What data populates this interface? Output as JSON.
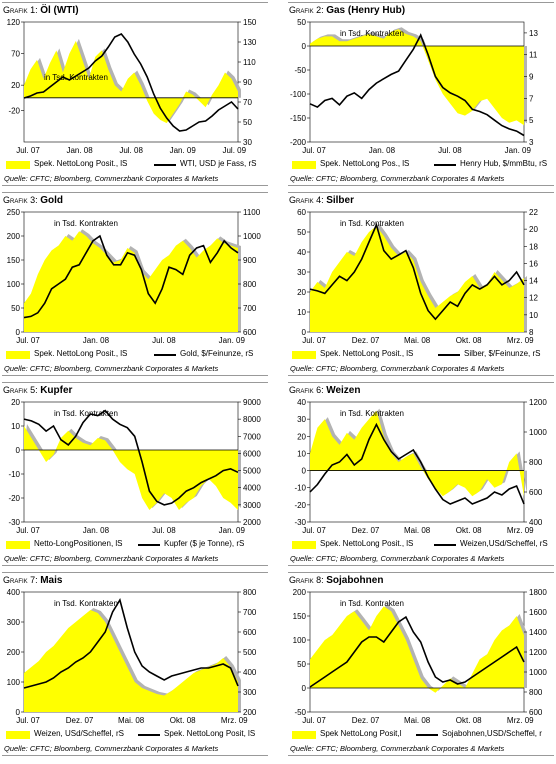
{
  "colors": {
    "fill": "#ffff00",
    "grey": "#b3b3b3",
    "line": "#000000"
  },
  "charts": [
    {
      "prefix": "Grafik 1:",
      "name": "Öl (WTI)",
      "annotation": "in Tsd. Kontrakten",
      "legend_fill": "Spek. NettoLong Posit., lS",
      "legend_line": "WTI, USD je Fass, rS",
      "source": "Quelle: CFTC; Bloomberg, Commerzbank Corporates & Markets"
    },
    {
      "prefix": "Grafik 2:",
      "name": "Gas (Henry Hub)",
      "annotation": "in Tsd. Kontrakten",
      "legend_fill": "Spek. NettoLong Pos., lS",
      "legend_line": "Henry Hub, $/mmBtu, rS",
      "source": "Quelle: CFTC; Bloomberg, Commerzbank Corporates & Markets"
    },
    {
      "prefix": "Grafik 3:",
      "name": "Gold",
      "annotation": "in Tsd. Kontrakten",
      "legend_fill": "Spek. NettoLong Posit., lS",
      "legend_line": "Gold, $/Feinunze, rS",
      "source": "Quelle: CFTC; Bloomberg, Commerzbank Corporates & Markets"
    },
    {
      "prefix": "Grafik 4:",
      "name": "Silber",
      "annotation": "in Tsd. Kontrakten",
      "legend_fill": "Spek. NettoLong Posit., lS",
      "legend_line": "Silber, $/Feinunze, rS",
      "source": "Quelle: CFTC; Bloomberg, Commerzbank Corporates & Markets"
    },
    {
      "prefix": "Grafik 5:",
      "name": "Kupfer",
      "annotation": "in Tsd. Kontrakten",
      "legend_fill": "Netto-LongPositionen, lS",
      "legend_line": "Kupfer ($ je Tonne), rS",
      "source": "Quelle: CFTC; Bloomberg, Commerzbank Corporates & Markets"
    },
    {
      "prefix": "Grafik 6:",
      "name": "Weizen",
      "annotation": "in Tsd. Kontrakten",
      "legend_fill": "Spek. NettoLong Posit., lS",
      "legend_line": "Weizen,USd/Scheffel, rS",
      "source": "Quelle: CFTC; Bloomberg, Commerzbank Corporates & Markets"
    },
    {
      "prefix": "Grafik 7:",
      "name": "Mais",
      "annotation": "in Tsd. Kontrakten",
      "legend_fill": "Weizen, USd/Scheffel, rS",
      "legend_line": "Spek. NettoLong Posit, lS",
      "source": "Quelle: CFTC; Bloomberg, Commerzbank Corporates & Markets"
    },
    {
      "prefix": "Grafik 8:",
      "name": "Sojabohnen",
      "annotation": "in Tsd. Kontrakten",
      "legend_fill": "Spek NettoLong Posit,l",
      "legend_line": "Sojabohnen,USD/Scheffel, r",
      "source": "Quelle: CFTC; Bloomberg, Commerzbank Corporates & Markets"
    }
  ],
  "chart_data": [
    {
      "type": "area",
      "title": "Öl (WTI)",
      "x_labels": [
        "Jul. 07",
        "Jan. 08",
        "Jul. 08",
        "Jan. 09",
        "Jul. 09"
      ],
      "left_axis": {
        "ticks": [
          -20,
          20,
          70,
          120
        ],
        "range": [
          -70,
          120
        ]
      },
      "right_axis": {
        "ticks": [
          30,
          50,
          70,
          90,
          110,
          130,
          150
        ],
        "range": [
          30,
          150
        ]
      },
      "series": [
        {
          "name": "Spek. NettoLong Posit., lS",
          "axis": "left",
          "values": [
            20,
            45,
            60,
            30,
            55,
            75,
            40,
            70,
            90,
            60,
            30,
            65,
            75,
            45,
            20,
            10,
            30,
            40,
            20,
            -5,
            -25,
            -35,
            -40,
            -25,
            -10,
            10,
            5,
            -5,
            -15,
            5,
            20,
            40,
            30,
            10
          ]
        },
        {
          "name": "WTI, USD je Fass, rS",
          "axis": "right",
          "values": [
            74,
            76,
            79,
            80,
            85,
            90,
            95,
            92,
            96,
            100,
            104,
            111,
            116,
            125,
            135,
            138,
            130,
            118,
            108,
            95,
            78,
            64,
            54,
            46,
            41,
            42,
            46,
            50,
            51,
            56,
            62,
            66,
            70,
            63
          ]
        }
      ]
    },
    {
      "type": "area",
      "title": "Gas (Henry Hub)",
      "x_labels": [
        "Jul. 07",
        "Jan. 08",
        "Jul. 08",
        "Jan. 09"
      ],
      "left_axis": {
        "ticks": [
          -200,
          -150,
          -100,
          -50,
          0,
          50
        ],
        "range": [
          -200,
          50
        ]
      },
      "right_axis": {
        "ticks": [
          3,
          5,
          7,
          9,
          11,
          13
        ],
        "range": [
          3,
          14
        ]
      },
      "series": [
        {
          "name": "Spek. NettoLong Pos., lS",
          "axis": "left",
          "values": [
            5,
            15,
            20,
            20,
            10,
            10,
            15,
            20,
            25,
            20,
            15,
            30,
            35,
            25,
            20,
            10,
            -30,
            -70,
            -100,
            -120,
            -140,
            -145,
            -135,
            -115,
            -110,
            -130,
            -150,
            -160,
            -155,
            -165
          ]
        },
        {
          "name": "Henry Hub, $/mmBtu, rS",
          "axis": "right",
          "values": [
            6.5,
            6.2,
            6.8,
            7.0,
            6.4,
            7.2,
            7.5,
            7.0,
            7.8,
            8.4,
            8.8,
            9.2,
            9.5,
            10.5,
            11.5,
            12.8,
            11.0,
            9.0,
            8.0,
            7.5,
            7.2,
            6.8,
            6.0,
            5.8,
            5.5,
            5.0,
            4.5,
            4.2,
            4.0,
            3.6
          ]
        }
      ]
    },
    {
      "type": "area",
      "title": "Gold",
      "x_labels": [
        "Jul. 07",
        "Jan. 08",
        "Jul. 08",
        "Jan. 09"
      ],
      "left_axis": {
        "ticks": [
          0,
          50,
          100,
          150,
          200,
          250
        ],
        "range": [
          0,
          250
        ]
      },
      "right_axis": {
        "ticks": [
          600,
          700,
          800,
          900,
          1000,
          1100
        ],
        "range": [
          600,
          1100
        ]
      },
      "series": [
        {
          "name": "Spek. NettoLong Posit., lS",
          "axis": "left",
          "values": [
            60,
            80,
            120,
            150,
            170,
            180,
            200,
            190,
            210,
            200,
            185,
            175,
            160,
            145,
            150,
            175,
            165,
            125,
            110,
            130,
            150,
            160,
            180,
            190,
            175,
            155,
            170,
            180,
            195,
            185,
            180,
            175
          ]
        },
        {
          "name": "Gold, $/Feinunze, rS",
          "axis": "right",
          "values": [
            660,
            665,
            680,
            720,
            780,
            800,
            820,
            870,
            880,
            930,
            980,
            1000,
            920,
            880,
            880,
            930,
            920,
            860,
            760,
            720,
            780,
            870,
            860,
            840,
            920,
            950,
            960,
            890,
            930,
            980,
            950,
            930
          ]
        }
      ]
    },
    {
      "type": "area",
      "title": "Silber",
      "x_labels": [
        "Jul. 07",
        "Dez. 07",
        "Mai. 08",
        "Okt. 08",
        "Mrz. 09"
      ],
      "left_axis": {
        "ticks": [
          0,
          10,
          20,
          30,
          40,
          50,
          60
        ],
        "range": [
          0,
          60
        ]
      },
      "right_axis": {
        "ticks": [
          8,
          10,
          12,
          14,
          16,
          18,
          20,
          22
        ],
        "range": [
          8,
          22
        ]
      },
      "series": [
        {
          "name": "Spek. NettoLong Posit., lS",
          "axis": "left",
          "values": [
            20,
            25,
            22,
            30,
            35,
            40,
            38,
            45,
            50,
            53,
            48,
            42,
            38,
            40,
            36,
            25,
            18,
            12,
            15,
            18,
            20,
            25,
            28,
            22,
            24,
            30,
            26,
            22,
            24,
            27
          ]
        },
        {
          "name": "Silber, $/Feinunze, rS",
          "axis": "right",
          "values": [
            13,
            12.8,
            12.5,
            13.5,
            14.5,
            14.0,
            15.0,
            16.5,
            18.5,
            20.5,
            17.5,
            16.5,
            17.0,
            17.5,
            15.5,
            12.5,
            10.5,
            9.5,
            10.5,
            11.5,
            11.0,
            12.5,
            13.5,
            13.0,
            13.5,
            14.5,
            13.5,
            14.0,
            15.0,
            13.5
          ]
        }
      ]
    },
    {
      "type": "area",
      "title": "Kupfer",
      "x_labels": [
        "Jul. 07",
        "Jan. 08",
        "Jul. 08",
        "Jan. 09"
      ],
      "left_axis": {
        "ticks": [
          -30,
          -20,
          -10,
          0,
          10,
          20
        ],
        "range": [
          -30,
          20
        ]
      },
      "right_axis": {
        "ticks": [
          2000,
          3000,
          4000,
          5000,
          6000,
          7000,
          8000,
          9000
        ],
        "range": [
          2000,
          9000
        ]
      },
      "series": [
        {
          "name": "Netto-LongPositionen, lS",
          "axis": "left",
          "values": [
            10,
            5,
            0,
            -5,
            -2,
            5,
            8,
            5,
            3,
            2,
            5,
            4,
            0,
            -5,
            -8,
            -10,
            -20,
            -25,
            -22,
            -18,
            -20,
            -25,
            -22,
            -20,
            -15,
            -12,
            -15,
            -20,
            -22,
            -25
          ]
        },
        {
          "name": "Kupfer ($ je Tonne), rS",
          "axis": "right",
          "values": [
            8000,
            7900,
            7700,
            7300,
            7600,
            6800,
            6500,
            7000,
            7800,
            8300,
            8200,
            8500,
            8000,
            7700,
            7500,
            7000,
            5500,
            3800,
            3200,
            3000,
            3100,
            3400,
            3800,
            4000,
            4300,
            4500,
            4700,
            5000,
            5100,
            4900
          ]
        }
      ]
    },
    {
      "type": "area",
      "title": "Weizen",
      "x_labels": [
        "Jul. 07",
        "Dez. 07",
        "Mai. 08",
        "Okt. 08",
        "Mrz. 09"
      ],
      "left_axis": {
        "ticks": [
          -30,
          -20,
          -10,
          0,
          10,
          20,
          30,
          40
        ],
        "range": [
          -30,
          40
        ]
      },
      "right_axis": {
        "ticks": [
          400,
          600,
          800,
          1000,
          1200
        ],
        "range": [
          400,
          1200
        ]
      },
      "series": [
        {
          "name": "Spek. NettoLong Posit., lS",
          "axis": "left",
          "values": [
            10,
            25,
            30,
            20,
            15,
            22,
            18,
            25,
            30,
            35,
            20,
            10,
            5,
            8,
            10,
            2,
            -5,
            -10,
            -15,
            -12,
            -8,
            -10,
            -15,
            -12,
            -5,
            -10,
            -8,
            5,
            10,
            -15
          ]
        },
        {
          "name": "Weizen,USd/Scheffel, rS",
          "axis": "right",
          "values": [
            600,
            650,
            720,
            780,
            800,
            850,
            780,
            820,
            950,
            1050,
            950,
            870,
            820,
            850,
            880,
            800,
            700,
            620,
            550,
            520,
            540,
            560,
            520,
            540,
            560,
            600,
            580,
            620,
            640,
            520
          ]
        }
      ]
    },
    {
      "type": "area",
      "title": "Mais",
      "x_labels": [
        "Jul. 07",
        "Dez. 07",
        "Mai. 08",
        "Okt. 08",
        "Mrz. 09"
      ],
      "left_axis": {
        "ticks": [
          0,
          100,
          200,
          300,
          400
        ],
        "range": [
          0,
          400
        ]
      },
      "right_axis": {
        "ticks": [
          200,
          300,
          400,
          500,
          600,
          700,
          800
        ],
        "range": [
          200,
          800
        ]
      },
      "series": [
        {
          "name": "Weizen, USd/Scheffel, rS",
          "axis": "left",
          "values": [
            130,
            150,
            170,
            200,
            220,
            250,
            280,
            300,
            320,
            340,
            330,
            300,
            250,
            200,
            150,
            100,
            80,
            70,
            60,
            55,
            70,
            90,
            110,
            130,
            140,
            150,
            160,
            180,
            150,
            100
          ]
        },
        {
          "name": "Spek. NettoLong Posit, lS",
          "axis": "right",
          "values": [
            320,
            330,
            340,
            350,
            370,
            400,
            420,
            450,
            470,
            500,
            550,
            600,
            700,
            760,
            620,
            500,
            430,
            400,
            380,
            360,
            380,
            390,
            400,
            410,
            420,
            420,
            430,
            440,
            420,
            330
          ]
        }
      ]
    },
    {
      "type": "area",
      "title": "Sojabohnen",
      "x_labels": [
        "Jul. 07",
        "Dez. 07",
        "Mai. 08",
        "Okt. 08",
        "Mrz. 09"
      ],
      "left_axis": {
        "ticks": [
          -50,
          0,
          50,
          100,
          150,
          200
        ],
        "range": [
          -50,
          200
        ]
      },
      "right_axis": {
        "ticks": [
          600,
          800,
          1000,
          1200,
          1400,
          1600,
          1800
        ],
        "range": [
          600,
          1800
        ]
      },
      "series": [
        {
          "name": "Spek NettoLong Posit,l",
          "axis": "left",
          "values": [
            60,
            80,
            100,
            110,
            130,
            150,
            160,
            140,
            120,
            150,
            170,
            160,
            130,
            100,
            60,
            20,
            0,
            -10,
            5,
            20,
            10,
            0,
            30,
            60,
            70,
            100,
            120,
            130,
            150,
            110
          ]
        },
        {
          "name": "Sojabohnen,USD/Scheffel, r",
          "axis": "right",
          "values": [
            850,
            900,
            950,
            1000,
            1050,
            1100,
            1200,
            1300,
            1350,
            1350,
            1300,
            1400,
            1500,
            1550,
            1400,
            1300,
            1100,
            950,
            900,
            920,
            880,
            900,
            950,
            1000,
            1050,
            1100,
            1150,
            1200,
            1250,
            1100
          ]
        }
      ]
    }
  ]
}
